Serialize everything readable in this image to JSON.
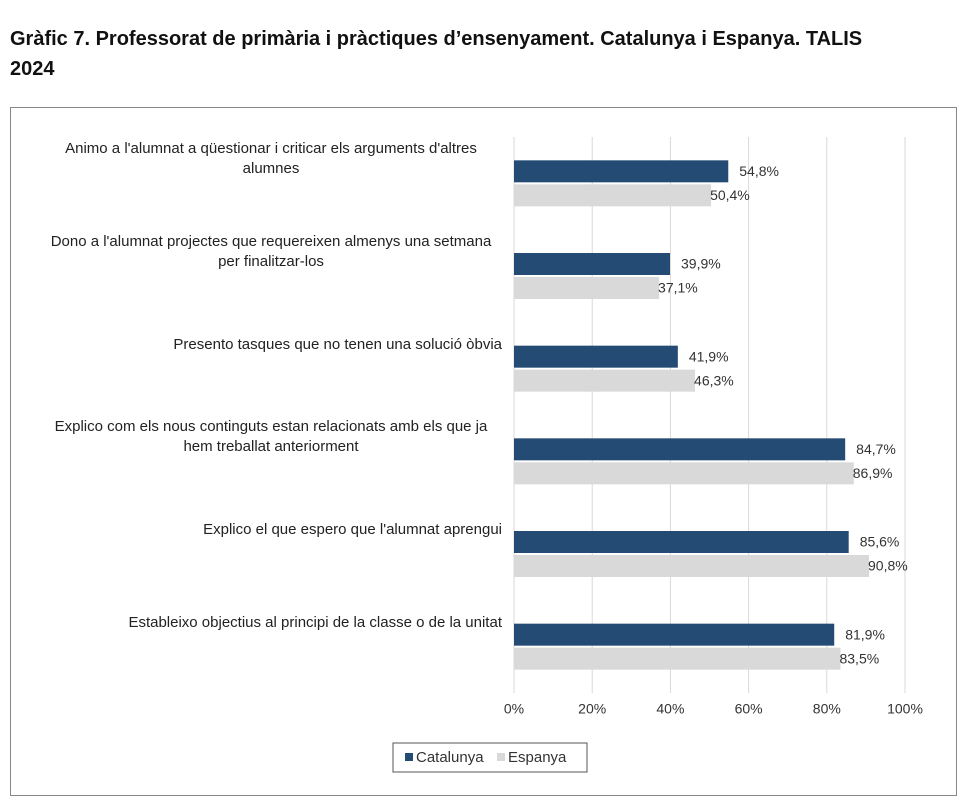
{
  "chart_data": {
    "type": "hbar",
    "title": "Gràfic 7. Professorat de primària i pràctiques d’ensenyament. Catalunya i Espanya. TALIS 2024",
    "categories": [
      "Animo a l'alumnat a qüestionar i criticar els arguments d'altres alumnes",
      "Dono a l'alumnat projectes que requereixen almenys una setmana per finalitzar-los",
      "Presento tasques que no tenen una solució òbvia",
      "Explico com els nous continguts estan relacionats amb els que ja hem treballat anteriorment",
      "Explico el que espero que l'alumnat aprengui",
      "Estableixo objectius al principi de la classe o de la unitat"
    ],
    "series": [
      {
        "name": "Catalunya",
        "color": "#244b74",
        "values": [
          54.8,
          39.9,
          41.9,
          84.7,
          85.6,
          81.9
        ],
        "value_labels": [
          "54,8%",
          "39,9%",
          "41,9%",
          "84,7%",
          "85,6%",
          "81,9%"
        ]
      },
      {
        "name": "Espanya",
        "color": "#d9d9d9",
        "values": [
          50.4,
          37.1,
          46.3,
          86.9,
          90.8,
          83.5
        ],
        "value_labels": [
          "50,4%",
          "37,1%",
          "46,3%",
          "86,9%",
          "90,8%",
          "83,5%"
        ]
      }
    ],
    "xlim": [
      0,
      100
    ],
    "xticks": [
      {
        "value": 0,
        "label": "0%"
      },
      {
        "value": 20,
        "label": "20%"
      },
      {
        "value": 40,
        "label": "40%"
      },
      {
        "value": 60,
        "label": "60%"
      },
      {
        "value": 80,
        "label": "80%"
      },
      {
        "value": 100,
        "label": "100%"
      }
    ],
    "grid": true,
    "legend": "bottom"
  }
}
